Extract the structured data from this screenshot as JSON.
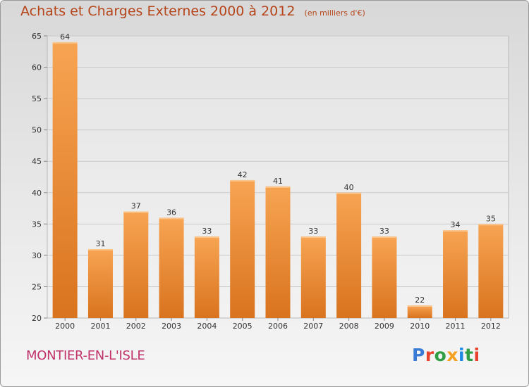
{
  "chart_data": {
    "type": "bar",
    "title": "Achats et Charges Externes 2000 à 2012",
    "subtitle": "(en milliers d'€)",
    "categories": [
      "2000",
      "2001",
      "2002",
      "2003",
      "2004",
      "2005",
      "2006",
      "2007",
      "2008",
      "2009",
      "2010",
      "2011",
      "2012"
    ],
    "values": [
      64,
      31,
      37,
      36,
      33,
      42,
      41,
      33,
      40,
      33,
      22,
      34,
      35
    ],
    "ylim": [
      20,
      65
    ],
    "yticks": [
      20,
      25,
      30,
      35,
      40,
      45,
      50,
      55,
      60,
      65
    ],
    "grid": true,
    "bar_color_light": "#f7a452",
    "bar_color_dark": "#d9731f"
  },
  "footer": {
    "commune": "MONTIER-EN-L'ISLE",
    "logo_letters": [
      "P",
      "r",
      "o",
      "x",
      "i",
      "t",
      "i"
    ],
    "logo_colors": [
      "#3a7bd5",
      "#e8412c",
      "#2f9e44",
      "#f4a020",
      "#1e88e5",
      "#2f9e44",
      "#e8412c"
    ]
  }
}
